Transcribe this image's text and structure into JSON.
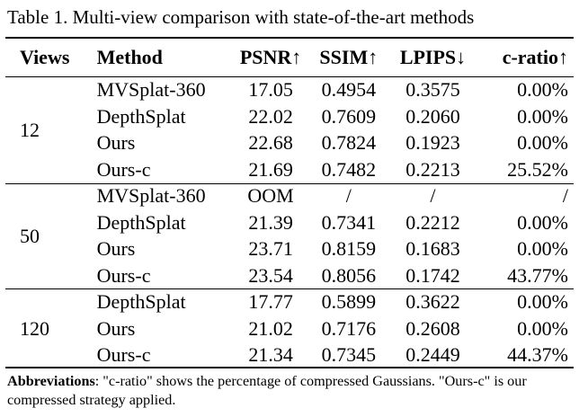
{
  "caption": "Table 1. Multi-view comparison with state-of-the-art methods",
  "headers": {
    "views": "Views",
    "method": "Method",
    "psnr": "PSNR↑",
    "ssim": "SSIM↑",
    "lpips": "LPIPS↓",
    "cratio": "c-ratio↑"
  },
  "groups": [
    {
      "views": "12",
      "rows": [
        {
          "method": "MVSplat-360",
          "psnr": "17.05",
          "ssim": "0.4954",
          "lpips": "0.3575",
          "cratio": "0.00%"
        },
        {
          "method": "DepthSplat",
          "psnr": "22.02",
          "ssim": "0.7609",
          "lpips": "0.2060",
          "cratio": "0.00%"
        },
        {
          "method": "Ours",
          "psnr": "22.68",
          "ssim": "0.7824",
          "lpips": "0.1923",
          "cratio": "0.00%"
        },
        {
          "method": "Ours-c",
          "psnr": "21.69",
          "ssim": "0.7482",
          "lpips": "0.2213",
          "cratio": "25.52%"
        }
      ]
    },
    {
      "views": "50",
      "rows": [
        {
          "method": "MVSplat-360",
          "psnr": "OOM",
          "ssim": "/",
          "lpips": "/",
          "cratio": "/"
        },
        {
          "method": "DepthSplat",
          "psnr": "21.39",
          "ssim": "0.7341",
          "lpips": "0.2212",
          "cratio": "0.00%"
        },
        {
          "method": "Ours",
          "psnr": "23.71",
          "ssim": "0.8159",
          "lpips": "0.1683",
          "cratio": "0.00%"
        },
        {
          "method": "Ours-c",
          "psnr": "23.54",
          "ssim": "0.8056",
          "lpips": "0.1742",
          "cratio": "43.77%"
        }
      ]
    },
    {
      "views": "120",
      "rows": [
        {
          "method": "DepthSplat",
          "psnr": "17.77",
          "ssim": "0.5899",
          "lpips": "0.3622",
          "cratio": "0.00%"
        },
        {
          "method": "Ours",
          "psnr": "21.02",
          "ssim": "0.7176",
          "lpips": "0.2608",
          "cratio": "0.00%"
        },
        {
          "method": "Ours-c",
          "psnr": "21.34",
          "ssim": "0.7345",
          "lpips": "0.2449",
          "cratio": "44.37%"
        }
      ]
    }
  ],
  "footnote": {
    "label": "Abbreviations",
    "text": ": \"c-ratio\" shows the percentage of compressed Gaussians. \"Ours-c\" is our compressed strategy applied."
  }
}
